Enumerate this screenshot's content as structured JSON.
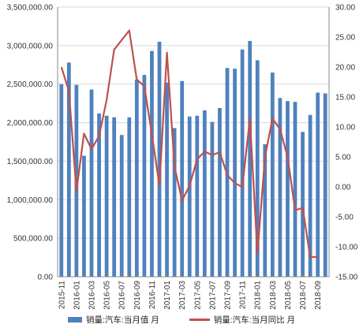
{
  "chart_data": {
    "type": "bar+line",
    "categories": [
      "2015-11",
      "2015-12",
      "2016-01",
      "2016-02",
      "2016-03",
      "2016-04",
      "2016-05",
      "2016-06",
      "2016-07",
      "2016-08",
      "2016-09",
      "2016-10",
      "2016-11",
      "2016-12",
      "2017-01",
      "2017-02",
      "2017-03",
      "2017-04",
      "2017-05",
      "2017-06",
      "2017-07",
      "2017-08",
      "2017-09",
      "2017-10",
      "2017-11",
      "2017-12",
      "2018-01",
      "2018-02",
      "2018-03",
      "2018-04",
      "2018-05",
      "2018-06",
      "2018-07",
      "2018-08",
      "2018-09",
      "2018-10"
    ],
    "x_tick_labels": [
      "2015-11",
      "2016-01",
      "2016-03",
      "2016-05",
      "2016-07",
      "2016-09",
      "2016-11",
      "2017-01",
      "2017-03",
      "2017-05",
      "2017-07",
      "2017-09",
      "2017-11",
      "2018-01",
      "2018-03",
      "2018-05",
      "2018-07",
      "2018-09"
    ],
    "series": [
      {
        "name": "销量:汽车:当月值 月",
        "axis": "left",
        "kind": "bar",
        "color": "#4f81bd",
        "values": [
          2500000,
          2780000,
          2490000,
          1570000,
          2430000,
          2120000,
          2090000,
          2070000,
          1840000,
          2070000,
          2560000,
          2620000,
          2930000,
          3050000,
          2520000,
          1930000,
          2540000,
          2080000,
          2090000,
          2160000,
          2010000,
          2190000,
          2710000,
          2700000,
          2950000,
          3060000,
          2810000,
          1720000,
          2650000,
          2320000,
          2280000,
          2270000,
          1880000,
          2100000,
          2390000,
          2380000
        ]
      },
      {
        "name": "销量:汽车:当月同比 月",
        "axis": "right",
        "kind": "line",
        "color": "#c0504d",
        "values": [
          20,
          16,
          -0.7,
          8.9,
          6.3,
          8.5,
          14.5,
          22.9,
          24.5,
          26.1,
          17.9,
          16.8,
          8.8,
          0.2,
          22.4,
          3.4,
          -2.3,
          0.2,
          4.6,
          5.9,
          5.3,
          5.8,
          2,
          0.6,
          0,
          11.4,
          -11.1,
          5,
          11.4,
          9.6,
          5,
          -3.9,
          -3.5,
          -11.7,
          -11.7,
          null
        ]
      }
    ],
    "y_left": {
      "min": 0,
      "max": 3500000,
      "step": 500000,
      "tick_labels": [
        "0.00",
        "500,000.00",
        "1,000,000.00",
        "1,500,000.00",
        "2,000,000.00",
        "2,500,000.00",
        "3,000,000.00",
        "3,500,000.00"
      ]
    },
    "y_right": {
      "min": -15,
      "max": 30,
      "step": 5,
      "tick_labels": [
        "-15.00",
        "-10.00",
        "-5.00",
        "0.00",
        "5.00",
        "10.00",
        "15.00",
        "20.00",
        "25.00",
        "30.00"
      ]
    },
    "grid": true,
    "legend_position": "bottom"
  }
}
